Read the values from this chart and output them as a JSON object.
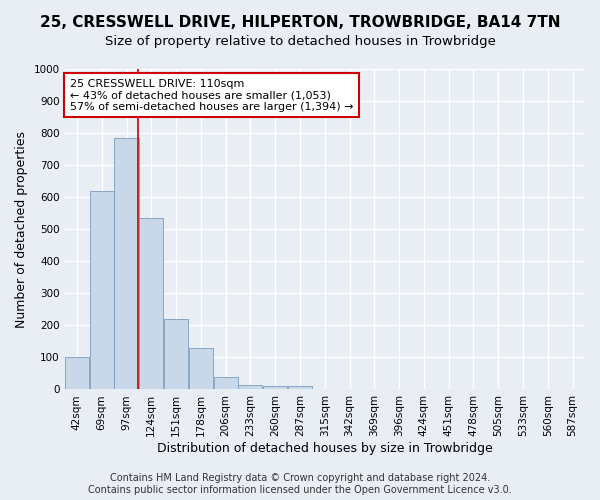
{
  "title": "25, CRESSWELL DRIVE, HILPERTON, TROWBRIDGE, BA14 7TN",
  "subtitle": "Size of property relative to detached houses in Trowbridge",
  "xlabel": "Distribution of detached houses by size in Trowbridge",
  "ylabel": "Number of detached properties",
  "bar_labels": [
    "42sqm",
    "69sqm",
    "97sqm",
    "124sqm",
    "151sqm",
    "178sqm",
    "206sqm",
    "233sqm",
    "260sqm",
    "287sqm",
    "315sqm",
    "342sqm",
    "369sqm",
    "396sqm",
    "424sqm",
    "451sqm",
    "478sqm",
    "505sqm",
    "533sqm",
    "560sqm",
    "587sqm"
  ],
  "bar_values": [
    100,
    620,
    785,
    535,
    220,
    130,
    40,
    15,
    10,
    10,
    0,
    0,
    0,
    0,
    0,
    0,
    0,
    0,
    0,
    0,
    0
  ],
  "bar_color": "#c8d8e8",
  "bar_edge_color": "#7a9cbf",
  "property_line_x": 2.48,
  "property_line_color": "#cc0000",
  "annotation_text": "25 CRESSWELL DRIVE: 110sqm\n← 43% of detached houses are smaller (1,053)\n57% of semi-detached houses are larger (1,394) →",
  "annotation_box_color": "#ffffff",
  "annotation_box_edge_color": "#cc0000",
  "ylim": [
    0,
    1000
  ],
  "yticks": [
    0,
    100,
    200,
    300,
    400,
    500,
    600,
    700,
    800,
    900,
    1000
  ],
  "footer_line1": "Contains HM Land Registry data © Crown copyright and database right 2024.",
  "footer_line2": "Contains public sector information licensed under the Open Government Licence v3.0.",
  "background_color": "#e8eef4",
  "grid_color": "#ffffff",
  "title_fontsize": 11,
  "subtitle_fontsize": 9.5,
  "axis_label_fontsize": 9,
  "tick_fontsize": 7.5,
  "annotation_fontsize": 8,
  "footer_fontsize": 7
}
